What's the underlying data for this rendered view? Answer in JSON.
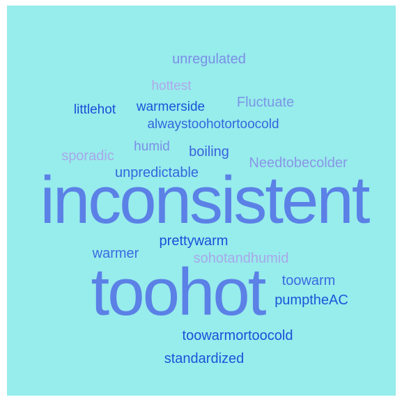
{
  "chart_data": {
    "type": "wordcloud",
    "background": "#97ecec",
    "words": [
      {
        "text": "unregulated",
        "color": "#7b8fe6"
      },
      {
        "text": "hottest",
        "color": "#b0a8ea"
      },
      {
        "text": "Fluctuate",
        "color": "#7b96e6"
      },
      {
        "text": "littlehot",
        "color": "#1a4fd8"
      },
      {
        "text": "warmerside",
        "color": "#1a55d8"
      },
      {
        "text": "alwaystoohotortoocold",
        "color": "#3366dd"
      },
      {
        "text": "sporadic",
        "color": "#a8a8e8"
      },
      {
        "text": "humid",
        "color": "#7b8fe6"
      },
      {
        "text": "boiling",
        "color": "#3a62dc"
      },
      {
        "text": "Needtobecolder",
        "color": "#8a96e6"
      },
      {
        "text": "unpredictable",
        "color": "#3366dd"
      },
      {
        "text": "inconsistent",
        "color": "#5b80e6"
      },
      {
        "text": "prettywarm",
        "color": "#1a4fd8"
      },
      {
        "text": "warmer",
        "color": "#3a6ae0"
      },
      {
        "text": "sohotandhumid",
        "color": "#a8a8e8"
      },
      {
        "text": "toohot",
        "color": "#5b80e6"
      },
      {
        "text": "toowarm",
        "color": "#3a6ae0"
      },
      {
        "text": "pumptheAC",
        "color": "#1a55d8"
      },
      {
        "text": "toowarmortoocold",
        "color": "#1a4fd8"
      },
      {
        "text": "standardized",
        "color": "#1a55d8"
      }
    ]
  }
}
